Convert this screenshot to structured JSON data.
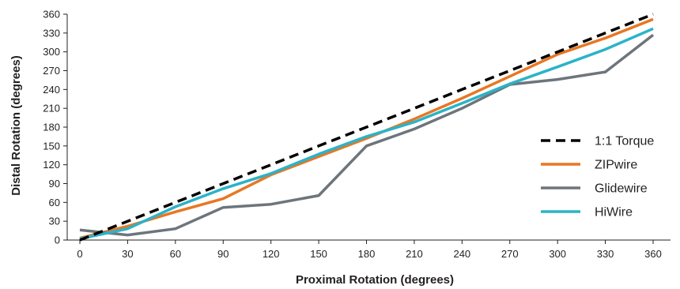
{
  "chart_data": {
    "type": "line",
    "xlabel": "Proximal Rotation (degrees)",
    "ylabel": "Distal Rotation (degrees)",
    "x": [
      0,
      30,
      60,
      90,
      120,
      150,
      180,
      210,
      240,
      270,
      300,
      330,
      360
    ],
    "xlim": [
      0,
      360
    ],
    "ylim": [
      0,
      360
    ],
    "xticks": [
      "0",
      "30",
      "60",
      "90",
      "120",
      "150",
      "180",
      "210",
      "240",
      "270",
      "300",
      "330",
      "360"
    ],
    "yticks": [
      "0",
      "30",
      "60",
      "90",
      "120",
      "150",
      "180",
      "210",
      "240",
      "270",
      "300",
      "330",
      "360"
    ],
    "grid": false,
    "legend_position": "right",
    "series": [
      {
        "name": "1:1 Torque",
        "color": "#000000",
        "dashed": true,
        "values": [
          0,
          30,
          60,
          90,
          120,
          150,
          180,
          210,
          240,
          270,
          300,
          330,
          360
        ]
      },
      {
        "name": "ZIPwire",
        "color": "#e87722",
        "dashed": false,
        "values": [
          3,
          22,
          45,
          66,
          104,
          133,
          162,
          193,
          226,
          261,
          296,
          322,
          352
        ]
      },
      {
        "name": "Glidewire",
        "color": "#6d757c",
        "dashed": false,
        "values": [
          16,
          8,
          18,
          52,
          57,
          71,
          150,
          177,
          210,
          248,
          256,
          268,
          327
        ]
      },
      {
        "name": "HiWire",
        "color": "#2bb3c8",
        "dashed": false,
        "values": [
          2,
          18,
          53,
          82,
          106,
          137,
          165,
          188,
          218,
          249,
          276,
          304,
          337
        ]
      }
    ]
  }
}
